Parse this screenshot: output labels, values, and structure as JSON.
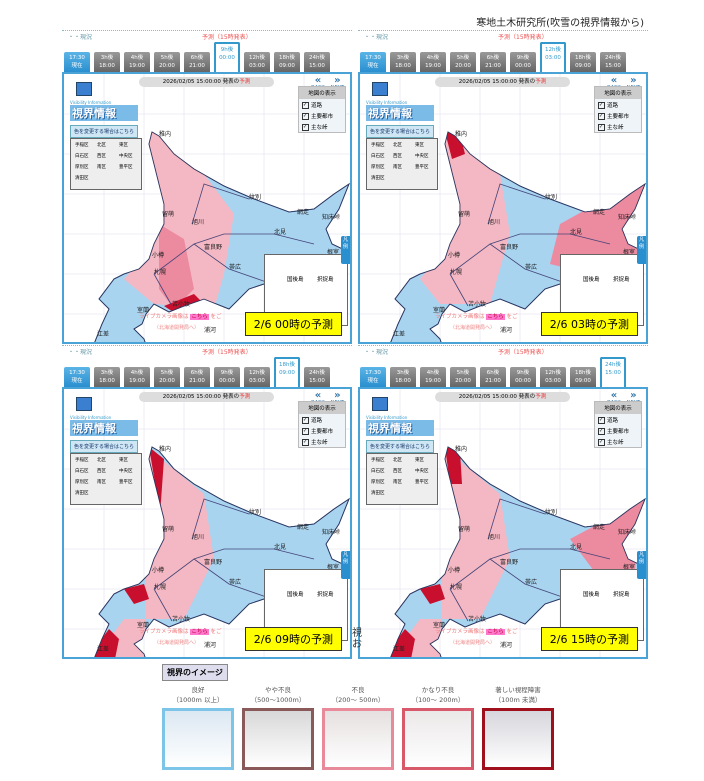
{
  "source_note": "寒地土木研究所(吹雪の視界情報から)",
  "header": {
    "now": "・・現況",
    "forecast": "予測（15時発表）"
  },
  "tabs": [
    {
      "top": "17:30",
      "bottom": "現在"
    },
    {
      "top": "3h後",
      "bottom": "18:00"
    },
    {
      "top": "4h後",
      "bottom": "19:00"
    },
    {
      "top": "5h後",
      "bottom": "20:00"
    },
    {
      "top": "6h後",
      "bottom": "21:00"
    },
    {
      "top": "9h後",
      "bottom": "00:00"
    },
    {
      "top": "12h後",
      "bottom": "03:00"
    },
    {
      "top": "18h後",
      "bottom": "09:00"
    },
    {
      "top": "24h後",
      "bottom": "15:00"
    }
  ],
  "issued": {
    "text": "2026/02/05 15:00:00 発表の",
    "highlight": "予測"
  },
  "nav": {
    "back": "BACK",
    "next": "NEXT"
  },
  "logo": {
    "subtitle": "Visibility Information",
    "title": "視界情報",
    "color_button": "色を変更する場合はこちら"
  },
  "layers": {
    "title": "地図の表示",
    "items": [
      "道路",
      "主要都市",
      "主な峠"
    ]
  },
  "inset_wards": [
    "手稲区",
    "北区",
    "東区",
    "白石区",
    "西区",
    "中央区",
    "厚別区",
    "南区",
    "豊平区",
    "清田区"
  ],
  "cities": [
    "稚内",
    "紋別",
    "網走",
    "知床峠",
    "北見",
    "根室",
    "釧路",
    "帯広",
    "富良野",
    "旭川",
    "留萌",
    "小樽",
    "札幌",
    "苫小牧",
    "室蘭",
    "江差",
    "函館",
    "浦河"
  ],
  "islands": [
    "国後島",
    "択捉島"
  ],
  "legend_tab": "凡例",
  "camera": {
    "before": "ライブカメラ画像は",
    "link": "こちら",
    "after": "をご",
    "sub": "（北海道開発局へ）"
  },
  "panels": [
    {
      "selected_tab": 5,
      "caption": "2/6 00時の予測"
    },
    {
      "selected_tab": 6,
      "caption": "2/6 03時の予測"
    },
    {
      "selected_tab": 7,
      "caption": "2/6 09時の予測"
    },
    {
      "selected_tab": 8,
      "caption": "2/6 15時の予測"
    }
  ],
  "stray_text": "視\nお",
  "visibility_legend": {
    "title": "視界のイメージ",
    "levels": [
      {
        "name": "良好",
        "range": "（1000m 以上）",
        "color": "#7cc4e8"
      },
      {
        "name": "やや不良",
        "range": "（500～1000m）",
        "color": "#8a5a5a"
      },
      {
        "name": "不良",
        "range": "（200～ 500m）",
        "color": "#e88a9a"
      },
      {
        "name": "かなり不良",
        "range": "（100～ 200m）",
        "color": "#d85a6a"
      },
      {
        "name": "著しい視程障害",
        "range": "（100m 未満）",
        "color": "#a0101c"
      }
    ]
  },
  "colors": {
    "good": "#a8d4f0",
    "light_pink": "#f4b8c4",
    "pink": "#ec8aa0",
    "red": "#c8102e",
    "frame": "#4aa3d6"
  }
}
